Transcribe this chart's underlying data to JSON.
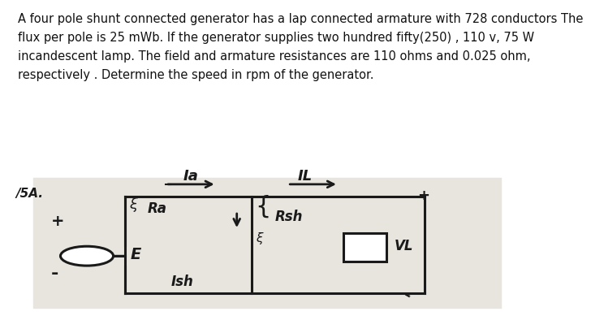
{
  "title_text": "A four pole shunt connected generator has a lap connected armature with 728 conductors The\nflux per pole is 25 mWb. If the generator supplies two hundred fifty(250) , 110 v, 75 W\nincandescent lamp. The field and armature resistances are 110 ohms and 0.025 ohm,\nrespectively . Determine the speed in rpm of the generator.",
  "title_fontsize": 10.5,
  "bg_top": "#ffffff",
  "bg_diagram": "#d6d2cb",
  "paper_color": "#e8e5df",
  "line_color": "#1a1a1a",
  "text_color": "#111111",
  "label_Ia": "Ia",
  "label_IL": "IL",
  "label_Ra": "Ra",
  "label_Rsh": "Rsh",
  "label_E": "E",
  "label_Ish": "Ish",
  "label_VL": "VL",
  "label_ISA": "/5A.",
  "label_plus_top_right": "+",
  "label_plus_left": "+",
  "label_minus_left": "-",
  "label_minus_bot_right": "-"
}
